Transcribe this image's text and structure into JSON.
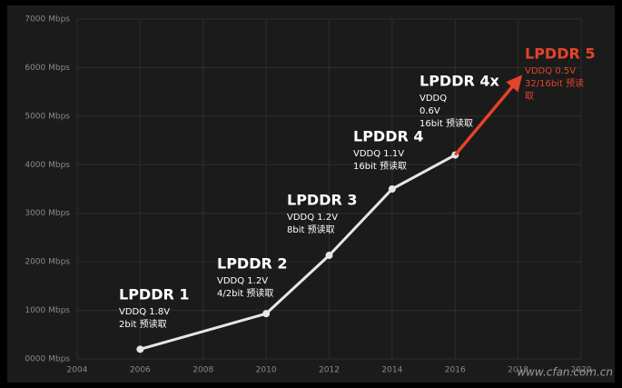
{
  "chart_data": {
    "type": "line",
    "x": [
      2006,
      2010,
      2012,
      2014,
      2016
    ],
    "series": [
      {
        "color": "#e6e6e6",
        "values": [
          200,
          933,
          2133,
          3500,
          4200
        ]
      }
    ],
    "arrow": {
      "color": "#e5432a",
      "x": [
        2016,
        2018
      ],
      "values": [
        4200,
        5750
      ]
    },
    "xlim": [
      2004,
      2020
    ],
    "xticks": [
      2004,
      2006,
      2008,
      2010,
      2012,
      2014,
      2016,
      2018,
      2020
    ],
    "ylim": [
      0,
      7000
    ],
    "yticks": [
      {
        "value": 0,
        "label": "0000 Mbps"
      },
      {
        "value": 1000,
        "label": "1000 Mbps"
      },
      {
        "value": 2000,
        "label": "2000 Mbps"
      },
      {
        "value": 3000,
        "label": "3000 Mbps"
      },
      {
        "value": 4000,
        "label": "4000 Mbps"
      },
      {
        "value": 5000,
        "label": "5000 Mbps"
      },
      {
        "value": 6000,
        "label": "6000 Mbps"
      },
      {
        "value": 7000,
        "label": "7000 Mbps"
      }
    ],
    "grid": true,
    "annotations": [
      {
        "title": "LPDDR 1",
        "lines": [
          "VDDQ 1.8V",
          "2bit 预读取"
        ],
        "color": "#ffffff"
      },
      {
        "title": "LPDDR 2",
        "lines": [
          "VDDQ 1.2V",
          "4/2bit 预读取"
        ],
        "color": "#ffffff"
      },
      {
        "title": "LPDDR 3",
        "lines": [
          "VDDQ 1.2V",
          "8bit 预读取"
        ],
        "color": "#ffffff"
      },
      {
        "title": "LPDDR 4",
        "lines": [
          "VDDQ 1.1V",
          "16bit 预读取"
        ],
        "color": "#ffffff"
      },
      {
        "title": "LPDDR 4x",
        "lines": [
          "VDDQ",
          "0.6V",
          "16bit 预读取"
        ],
        "color": "#ffffff"
      },
      {
        "title": "LPDDR 5",
        "lines": [
          "VDDQ 0.5V",
          "32/16bit 预读",
          "取"
        ],
        "color": "#e5432a"
      }
    ],
    "watermark": "www.cfan.com.cn"
  }
}
